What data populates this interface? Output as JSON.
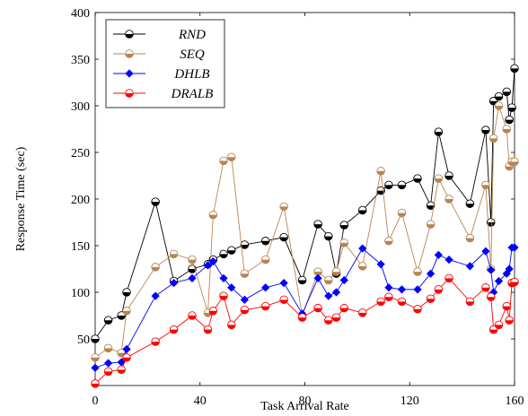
{
  "chart_data": {
    "type": "line",
    "xlabel": "Task Arrival Rate",
    "ylabel": "Response Time (sec)",
    "xlim": [
      0,
      160
    ],
    "ylim": [
      0,
      400
    ],
    "xticks": [
      "0",
      "40",
      "80",
      "120",
      "160"
    ],
    "yticks": [
      "50",
      "100",
      "150",
      "200",
      "250",
      "300",
      "350",
      "400"
    ],
    "legend_position": "top-left",
    "grid": false,
    "series": [
      {
        "name": "RND",
        "color": "#000000",
        "marker": "half-circle",
        "x": [
          0,
          5,
          10,
          12,
          23,
          30,
          37,
          43,
          45,
          49,
          52,
          57,
          65,
          72,
          79,
          85,
          89,
          92,
          95,
          102,
          109,
          112,
          117,
          123,
          128,
          131,
          135,
          143,
          149,
          151,
          152,
          154,
          157,
          158,
          159,
          160
        ],
        "y": [
          50,
          70,
          75,
          100,
          197,
          112,
          125,
          130,
          135,
          141,
          145,
          151,
          155,
          159,
          113,
          173,
          160,
          120,
          172,
          188,
          209,
          215,
          215,
          222,
          193,
          272,
          225,
          195,
          274,
          175,
          305,
          310,
          315,
          285,
          298,
          340
        ]
      },
      {
        "name": "SEQ",
        "color": "#b78550",
        "marker": "half-circle",
        "x": [
          0,
          5,
          10,
          12,
          23,
          30,
          37,
          43,
          45,
          49,
          52,
          57,
          65,
          72,
          79,
          85,
          89,
          92,
          95,
          102,
          109,
          112,
          117,
          123,
          128,
          131,
          135,
          143,
          149,
          151,
          152,
          154,
          157,
          158,
          159,
          160
        ],
        "y": [
          30,
          40,
          35,
          80,
          127,
          141,
          135,
          78,
          183,
          241,
          245,
          120,
          135,
          192,
          75,
          122,
          113,
          122,
          153,
          128,
          230,
          155,
          185,
          122,
          173,
          222,
          200,
          158,
          215,
          125,
          265,
          300,
          275,
          235,
          240,
          240
        ]
      },
      {
        "name": "DHLB",
        "color": "#0000ff",
        "marker": "diamond",
        "x": [
          0,
          5,
          10,
          12,
          23,
          30,
          37,
          43,
          45,
          49,
          52,
          57,
          65,
          72,
          79,
          85,
          89,
          92,
          95,
          102,
          109,
          112,
          117,
          123,
          128,
          131,
          135,
          143,
          149,
          151,
          152,
          154,
          157,
          158,
          159,
          160
        ],
        "y": [
          19,
          24,
          25,
          39,
          96,
          110,
          115,
          129,
          133,
          115,
          105,
          92,
          105,
          110,
          77,
          115,
          96,
          100,
          113,
          147,
          130,
          105,
          103,
          103,
          120,
          140,
          135,
          128,
          144,
          124,
          100,
          112,
          120,
          125,
          148,
          148
        ]
      },
      {
        "name": "DRALB",
        "color": "#ff0000",
        "marker": "half-circle",
        "x": [
          0,
          5,
          10,
          12,
          23,
          30,
          37,
          43,
          45,
          49,
          52,
          57,
          65,
          72,
          79,
          85,
          89,
          92,
          95,
          102,
          109,
          112,
          117,
          123,
          128,
          131,
          135,
          143,
          149,
          151,
          152,
          154,
          157,
          158,
          159,
          160
        ],
        "y": [
          2,
          15,
          17,
          30,
          47,
          60,
          75,
          60,
          80,
          96,
          65,
          81,
          85,
          92,
          73,
          83,
          70,
          73,
          83,
          78,
          90,
          95,
          90,
          82,
          93,
          103,
          115,
          90,
          105,
          95,
          60,
          65,
          85,
          70,
          110,
          111
        ]
      }
    ]
  }
}
